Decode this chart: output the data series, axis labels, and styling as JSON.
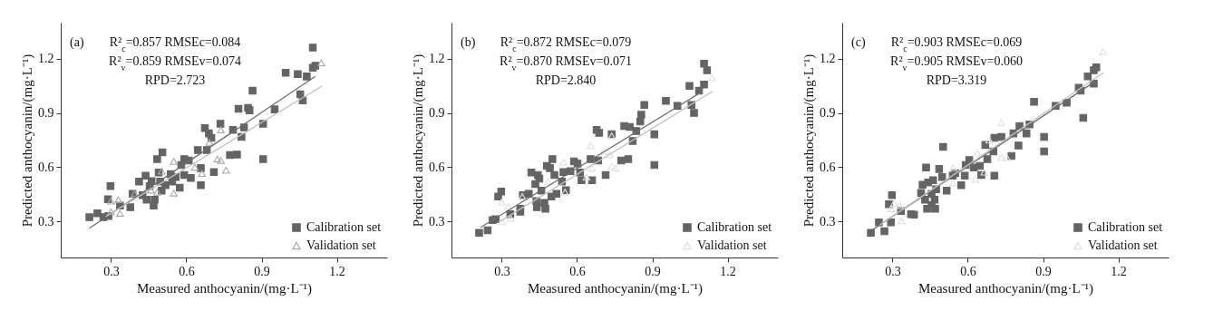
{
  "chart_data": [
    {
      "type": "scatter",
      "xlabel": "Measured anthocyanin/(mg·L⁻¹)",
      "ylabel": "Predicted anthocyanin/(mg·L⁻¹)",
      "xlim": [
        0.1,
        1.4
      ],
      "ylim": [
        0.1,
        1.4
      ],
      "xticks": [
        0.3,
        0.6,
        0.9,
        1.2
      ],
      "yticks": [
        0.3,
        0.6,
        0.9,
        1.2
      ],
      "legend": "bottom right",
      "annotations": [
        "(a)",
        "R²$_{c}$=0.857 RMSEc=0.084",
        "R²$_{v}$=0.859 RMSEv=0.074",
        "RPD=2.723"
      ],
      "series": [
        {
          "name": "Calibration set",
          "color": "#646464",
          "marker": "square",
          "x": [
            0.214,
            0.246,
            0.27,
            0.288,
            0.298,
            0.29,
            0.336,
            0.377,
            0.386,
            0.412,
            0.426,
            0.438,
            0.442,
            0.454,
            0.462,
            0.47,
            0.474,
            0.484,
            0.49,
            0.496,
            0.502,
            0.505,
            0.517,
            0.538,
            0.544,
            0.558,
            0.574,
            0.58,
            0.592,
            0.592,
            0.61,
            0.618,
            0.646,
            0.658,
            0.658,
            0.674,
            0.682,
            0.69,
            0.7,
            0.71,
            0.736,
            0.774,
            0.786,
            0.802,
            0.82,
            0.808,
            0.83,
            0.846,
            0.852,
            0.864,
            0.906,
            0.906,
            0.952,
            0.996,
            1.044,
            1.054,
            1.064,
            1.08,
            1.104,
            1.104,
            1.114
          ],
          "values": [
            0.323,
            0.345,
            0.323,
            0.423,
            0.495,
            0.33,
            0.387,
            0.378,
            0.453,
            0.52,
            0.445,
            0.553,
            0.42,
            0.495,
            0.523,
            0.387,
            0.42,
            0.645,
            0.57,
            0.52,
            0.47,
            0.682,
            0.5,
            0.562,
            0.52,
            0.545,
            0.487,
            0.612,
            0.645,
            0.557,
            0.637,
            0.54,
            0.695,
            0.595,
            0.5,
            0.817,
            0.695,
            0.787,
            0.762,
            0.573,
            0.84,
            0.667,
            0.807,
            0.67,
            0.767,
            0.923,
            0.82,
            0.928,
            0.915,
            1.023,
            0.645,
            0.84,
            0.92,
            1.123,
            1.115,
            1.003,
            0.97,
            1.102,
            1.262,
            1.15,
            1.162
          ]
        },
        {
          "name": "Validation set",
          "color": "#a8a8a8",
          "marker": "triangle",
          "x": [
            0.3,
            0.33,
            0.336,
            0.3,
            0.394,
            0.46,
            0.484,
            0.502,
            0.55,
            0.55,
            0.634,
            0.662,
            0.692,
            0.724,
            0.738,
            0.738,
            0.758,
            1.138
          ],
          "values": [
            0.412,
            0.42,
            0.345,
            0.353,
            0.453,
            0.473,
            0.462,
            0.578,
            0.632,
            0.457,
            0.6,
            0.565,
            0.737,
            0.645,
            0.637,
            0.807,
            0.583,
            1.178
          ]
        },
        {
          "type": "line",
          "color": "#6e6e6e",
          "x": [
            0.214,
            1.114
          ],
          "values": [
            0.262,
            1.103
          ]
        },
        {
          "type": "line",
          "color": "#c0c0c0",
          "x": [
            0.28,
            1.142
          ],
          "values": [
            0.328,
            1.05
          ]
        }
      ]
    },
    {
      "type": "scatter",
      "xlabel": "Measured anthocyanin/(mg·L⁻¹)",
      "ylabel": "Predicted anthocyanin/(mg·L⁻¹)",
      "xlim": [
        0.1,
        1.4
      ],
      "ylim": [
        0.1,
        1.4
      ],
      "xticks": [
        0.3,
        0.6,
        0.9,
        1.2
      ],
      "yticks": [
        0.3,
        0.6,
        0.9,
        1.2
      ],
      "legend": "bottom right",
      "annotations": [
        "(b)",
        "R²$_{c}$=0.872 RMSEc=0.079",
        "R²$_{v}$=0.870 RMSEv=0.071",
        "RPD=2.840"
      ],
      "series": [
        {
          "name": "Calibration set",
          "color": "#646464",
          "marker": "square",
          "x": [
            0.21,
            0.244,
            0.264,
            0.276,
            0.286,
            0.298,
            0.334,
            0.374,
            0.374,
            0.384,
            0.408,
            0.418,
            0.434,
            0.438,
            0.44,
            0.444,
            0.45,
            0.458,
            0.47,
            0.474,
            0.48,
            0.492,
            0.498,
            0.502,
            0.51,
            0.518,
            0.54,
            0.546,
            0.556,
            0.574,
            0.588,
            0.602,
            0.612,
            0.618,
            0.654,
            0.66,
            0.678,
            0.688,
            0.684,
            0.714,
            0.738,
            0.776,
            0.788,
            0.804,
            0.81,
            0.822,
            0.836,
            0.852,
            0.856,
            0.868,
            0.908,
            0.908,
            0.954,
            1.0,
            1.048,
            1.056,
            1.066,
            1.086,
            1.106,
            1.106,
            1.118
          ],
          "values": [
            0.237,
            0.25,
            0.307,
            0.312,
            0.437,
            0.465,
            0.34,
            0.353,
            0.37,
            0.445,
            0.453,
            0.57,
            0.507,
            0.412,
            0.378,
            0.557,
            0.537,
            0.47,
            0.403,
            0.37,
            0.607,
            0.595,
            0.437,
            0.645,
            0.557,
            0.453,
            0.52,
            0.573,
            0.473,
            0.578,
            0.632,
            0.62,
            0.57,
            0.528,
            0.645,
            0.528,
            0.807,
            0.79,
            0.637,
            0.557,
            0.783,
            0.637,
            0.828,
            0.645,
            0.823,
            0.745,
            0.8,
            0.853,
            0.89,
            0.945,
            0.782,
            0.612,
            0.967,
            0.94,
            1.05,
            0.945,
            0.9,
            1.023,
            1.057,
            1.173,
            1.137
          ]
        },
        {
          "name": "Validation set",
          "color": "#e0e0e0",
          "marker": "triangle",
          "x": [
            0.3,
            0.3,
            0.326,
            0.336,
            0.382,
            0.486,
            0.546,
            0.552,
            0.638,
            0.654,
            0.66,
            0.706,
            0.73,
            0.738,
            0.738,
            0.754,
            1.138
          ],
          "values": [
            0.407,
            0.298,
            0.383,
            0.317,
            0.437,
            0.52,
            0.628,
            0.462,
            0.545,
            0.72,
            0.595,
            0.687,
            0.67,
            0.773,
            0.607,
            0.595,
            1.095
          ]
        },
        {
          "type": "line",
          "color": "#6e6e6e",
          "x": [
            0.216,
            1.1
          ],
          "values": [
            0.267,
            1.02
          ]
        },
        {
          "type": "line",
          "color": "#c0c0c0",
          "x": [
            0.288,
            1.14
          ],
          "values": [
            0.295,
            1.02
          ]
        }
      ]
    },
    {
      "type": "scatter",
      "xlabel": "Measured anthocyanin/(mg·L⁻¹)",
      "ylabel": "Predicted anthocyanin/(mg·L⁻¹)",
      "xlim": [
        0.1,
        1.4
      ],
      "ylim": [
        0.1,
        1.4
      ],
      "xticks": [
        0.3,
        0.6,
        0.9,
        1.2
      ],
      "yticks": [
        0.3,
        0.6,
        0.9,
        1.2
      ],
      "legend": "bottom right",
      "annotations": [
        "(c)",
        "R²$_{c}$=0.903 RMSEc=0.069",
        "R²$_{v}$=0.905 RMSEv=0.060",
        "RPD=3.319"
      ],
      "series": [
        {
          "name": "Calibration set",
          "color": "#646464",
          "marker": "square",
          "x": [
            0.214,
            0.246,
            0.268,
            0.286,
            0.294,
            0.298,
            0.334,
            0.374,
            0.386,
            0.414,
            0.42,
            0.43,
            0.434,
            0.438,
            0.442,
            0.456,
            0.456,
            0.462,
            0.468,
            0.47,
            0.474,
            0.486,
            0.498,
            0.502,
            0.516,
            0.54,
            0.55,
            0.574,
            0.588,
            0.592,
            0.606,
            0.624,
            0.648,
            0.654,
            0.67,
            0.678,
            0.702,
            0.706,
            0.706,
            0.734,
            0.774,
            0.782,
            0.802,
            0.806,
            0.834,
            0.846,
            0.864,
            0.904,
            0.904,
            0.95,
            0.994,
            1.042,
            1.05,
            1.06,
            1.078,
            1.102,
            1.102,
            1.112
          ],
          "values": [
            0.237,
            0.295,
            0.245,
            0.395,
            0.295,
            0.445,
            0.357,
            0.34,
            0.337,
            0.457,
            0.503,
            0.42,
            0.598,
            0.37,
            0.515,
            0.453,
            0.39,
            0.528,
            0.42,
            0.37,
            0.478,
            0.59,
            0.545,
            0.712,
            0.47,
            0.553,
            0.567,
            0.5,
            0.553,
            0.612,
            0.64,
            0.598,
            0.607,
            0.557,
            0.723,
            0.645,
            0.687,
            0.553,
            0.762,
            0.767,
            0.662,
            0.787,
            0.72,
            0.828,
            0.787,
            0.837,
            0.962,
            0.687,
            0.767,
            0.94,
            0.957,
            1.04,
            1.023,
            0.873,
            1.103,
            1.062,
            1.137,
            1.153
          ]
        },
        {
          "name": "Validation set",
          "color": "#e0e0e0",
          "marker": "triangle",
          "x": [
            0.294,
            0.306,
            0.33,
            0.336,
            0.542,
            0.542,
            0.63,
            0.638,
            0.666,
            0.686,
            0.734,
            0.734,
            0.756,
            1.138
          ],
          "values": [
            0.37,
            0.4,
            0.387,
            0.303,
            0.598,
            0.512,
            0.533,
            0.678,
            0.573,
            0.75,
            0.848,
            0.653,
            0.653,
            1.24
          ]
        },
        {
          "type": "line",
          "color": "#6e6e6e",
          "x": [
            0.22,
            1.116
          ],
          "values": [
            0.253,
            1.083
          ]
        },
        {
          "type": "line",
          "color": "#c0c0c0",
          "x": [
            0.25,
            1.14
          ],
          "values": [
            0.28,
            1.123
          ]
        }
      ]
    }
  ]
}
